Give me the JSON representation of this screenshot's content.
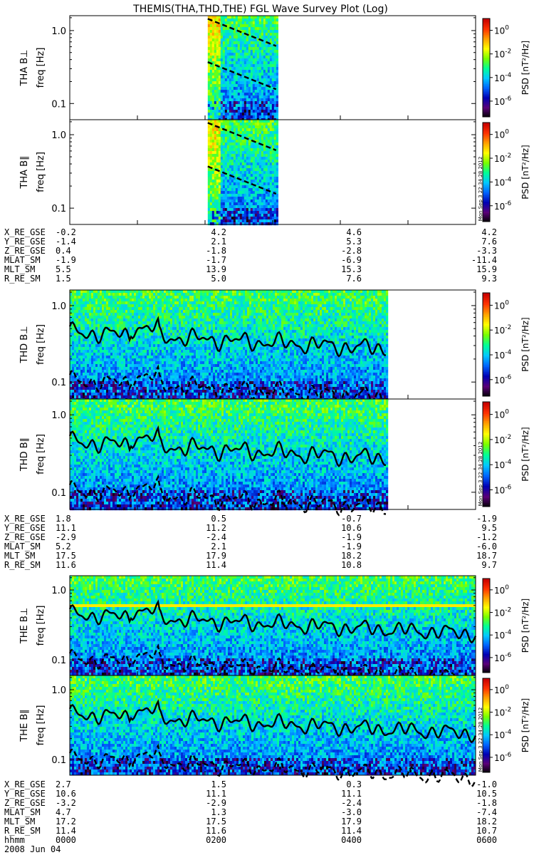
{
  "title": "THEMIS(THA,THD,THE) FGL Wave Survey Plot (Log)",
  "chart_data": {
    "type": "heatmap",
    "xlim": [
      "0000",
      "0600"
    ],
    "yaxis_scale": "log",
    "yticks": [
      "0.1",
      "1.0"
    ],
    "colorbar": {
      "label_main": "PSD",
      "label_units": "[nT²/Hz]",
      "scale": "log",
      "ticks": [
        {
          "base": "10",
          "exp": "0"
        },
        {
          "base": "10",
          "exp": "-2"
        },
        {
          "base": "10",
          "exp": "-4"
        },
        {
          "base": "10",
          "exp": "-6"
        }
      ],
      "colors": [
        "#000000",
        "#5a0078",
        "#0000b4",
        "#0064ff",
        "#00c8ff",
        "#00ff96",
        "#78ff00",
        "#ffff00",
        "#ffa000",
        "#ff3200",
        "#c80000"
      ]
    },
    "stamp": "Mon Sep 3 22:34:28 2012",
    "panels": [
      {
        "id": "tha-bperp",
        "ylabel": "THA B⊥",
        "ylabel2": "freq [Hz]",
        "coverage": [
          0.34,
          0.51
        ],
        "lines": "tha"
      },
      {
        "id": "tha-bpar",
        "ylabel": "THA B∥",
        "ylabel2": "freq [Hz]",
        "coverage": [
          0.34,
          0.51
        ],
        "lines": "tha"
      },
      {
        "id": "thd-bperp",
        "ylabel": "THD B⊥",
        "ylabel2": "freq [Hz]",
        "coverage": [
          0.0,
          0.78
        ],
        "lines": "thd"
      },
      {
        "id": "thd-bpar",
        "ylabel": "THD B∥",
        "ylabel2": "freq [Hz]",
        "coverage": [
          0.0,
          0.78
        ],
        "lines": "thd"
      },
      {
        "id": "the-bperp",
        "ylabel": "THE B⊥",
        "ylabel2": "freq [Hz]",
        "coverage": [
          0.0,
          1.0
        ],
        "lines": "the"
      },
      {
        "id": "the-bpar",
        "ylabel": "THE B∥",
        "ylabel2": "freq [Hz]",
        "coverage": [
          0.0,
          1.0
        ],
        "lines": "the"
      }
    ],
    "ephemeris": [
      {
        "rows": [
          {
            "label": "X_RE_GSE",
            "values": [
              "-0.2",
              "4.2",
              "4.6",
              "4.2"
            ]
          },
          {
            "label": "Y_RE_GSE",
            "values": [
              "-1.4",
              "2.1",
              "5.3",
              "7.6"
            ]
          },
          {
            "label": "Z_RE_GSE",
            "values": [
              "0.4",
              "-1.8",
              "-2.8",
              "-3.3"
            ]
          },
          {
            "label": "MLAT_SM",
            "values": [
              "-1.9",
              "-1.7",
              "-6.9",
              "-11.4"
            ]
          },
          {
            "label": "MLT_SM",
            "values": [
              "5.5",
              "13.9",
              "15.3",
              "15.9"
            ]
          },
          {
            "label": "R_RE_SM",
            "values": [
              "1.5",
              "5.0",
              "7.6",
              "9.3"
            ]
          }
        ]
      },
      {
        "rows": [
          {
            "label": "X_RE_GSE",
            "values": [
              "1.8",
              "0.5",
              "-0.7",
              "-1.9"
            ]
          },
          {
            "label": "Y_RE_GSE",
            "values": [
              "11.1",
              "11.2",
              "10.6",
              "9.5"
            ]
          },
          {
            "label": "Z_RE_GSE",
            "values": [
              "-2.9",
              "-2.4",
              "-1.9",
              "-1.2"
            ]
          },
          {
            "label": "MLAT_SM",
            "values": [
              "5.2",
              "2.1",
              "-1.9",
              "-6.0"
            ]
          },
          {
            "label": "MLT_SM",
            "values": [
              "17.5",
              "17.9",
              "18.2",
              "18.7"
            ]
          },
          {
            "label": "R_RE_SM",
            "values": [
              "11.6",
              "11.4",
              "10.8",
              "9.7"
            ]
          }
        ]
      },
      {
        "rows": [
          {
            "label": "X_RE_GSE",
            "values": [
              "2.7",
              "1.5",
              "0.3",
              "-1.0"
            ]
          },
          {
            "label": "Y_RE_GSE",
            "values": [
              "10.6",
              "11.1",
              "11.1",
              "10.5"
            ]
          },
          {
            "label": "Z_RE_GSE",
            "values": [
              "-3.2",
              "-2.9",
              "-2.4",
              "-1.8"
            ]
          },
          {
            "label": "MLAT_SM",
            "values": [
              "4.7",
              "1.3",
              "-3.0",
              "-7.4"
            ]
          },
          {
            "label": "MLT_SM",
            "values": [
              "17.2",
              "17.5",
              "17.9",
              "18.2"
            ]
          },
          {
            "label": "R_RE_SM",
            "values": [
              "11.4",
              "11.6",
              "11.4",
              "10.7"
            ]
          },
          {
            "label": "hhmm",
            "values": [
              "0000",
              "0200",
              "0400",
              "0600"
            ]
          }
        ],
        "date": "2008 Jun 04"
      }
    ]
  }
}
